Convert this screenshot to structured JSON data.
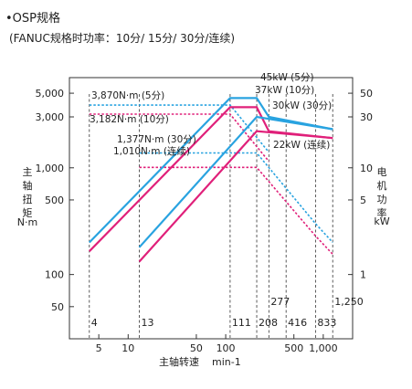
{
  "title": "•OSP规格",
  "subtitle": "(FANUC规格时功率：10分/ 15分/ 30分/连续)",
  "chart_data": {
    "type": "line",
    "xscale": "log",
    "yscale": "log",
    "xlim": [
      2.5,
      2000
    ],
    "ylim": [
      25,
      7000
    ],
    "xticks": [
      {
        "value": 5,
        "label": "5"
      },
      {
        "value": 10,
        "label": "10"
      },
      {
        "value": 50,
        "label": "50"
      },
      {
        "value": 100,
        "label": "100"
      },
      {
        "value": 500,
        "label": "500"
      },
      {
        "value": 1000,
        "label": "1,000"
      }
    ],
    "yticks_left": [
      {
        "value": 50,
        "label": "50"
      },
      {
        "value": 100,
        "label": "100"
      },
      {
        "value": 500,
        "label": "500"
      },
      {
        "value": 1000,
        "label": "1,000"
      },
      {
        "value": 3000,
        "label": "3,000"
      },
      {
        "value": 5000,
        "label": "5,000"
      }
    ],
    "yticks_right": [
      {
        "value": 100,
        "label": "1"
      },
      {
        "value": 500,
        "label": "5"
      },
      {
        "value": 1000,
        "label": "10"
      },
      {
        "value": 3000,
        "label": "30"
      },
      {
        "value": 5000,
        "label": "50"
      }
    ],
    "xlabel": "主轴转速",
    "xunit": "min-1",
    "ylabel_left": "主轴扭矩",
    "yunit_left": "N·m",
    "ylabel_right": "电机功率",
    "yunit_right": "kW",
    "vlines": [
      {
        "value": 4,
        "label": "4"
      },
      {
        "value": 13,
        "label": "13"
      },
      {
        "value": 111,
        "label": "111"
      },
      {
        "value": 208,
        "label": "208"
      },
      {
        "value": 277,
        "label": "277"
      },
      {
        "value": 416,
        "label": "416"
      },
      {
        "value": 833,
        "label": "833"
      },
      {
        "value": 1250,
        "label": "1,250"
      }
    ],
    "power_series": [
      {
        "name": "45kW (5分)",
        "color": "#29a3e0",
        "points": [
          [
            4,
            200
          ],
          [
            111,
            4500
          ],
          [
            208,
            4500
          ],
          [
            277,
            3000
          ],
          [
            1250,
            2300
          ]
        ]
      },
      {
        "name": "37kW (10分)",
        "color": "#e0207a",
        "points": [
          [
            4,
            165
          ],
          [
            111,
            3700
          ],
          [
            208,
            3700
          ],
          [
            277,
            2200
          ],
          [
            1250,
            1900
          ]
        ]
      },
      {
        "name": "30kW (30分)",
        "color": "#29a3e0",
        "points": [
          [
            13,
            180
          ],
          [
            208,
            3000
          ],
          [
            1250,
            2300
          ]
        ]
      },
      {
        "name": "22kW (连续)",
        "color": "#e0207a",
        "points": [
          [
            13,
            132
          ],
          [
            208,
            2200
          ],
          [
            1250,
            1900
          ]
        ]
      }
    ],
    "torque_series": [
      {
        "name": "3,870N·m (5分)",
        "color": "#29a3e0",
        "points": [
          [
            4,
            3870
          ],
          [
            111,
            3870
          ],
          [
            277,
            1400
          ]
        ]
      },
      {
        "name": "3,182N·m (10分)",
        "color": "#e0207a",
        "points": [
          [
            4,
            3182
          ],
          [
            111,
            3182
          ],
          [
            277,
            1150
          ]
        ]
      },
      {
        "name": "1,377N·m (30分)",
        "color": "#29a3e0",
        "points": [
          [
            13,
            1377
          ],
          [
            208,
            1377
          ],
          [
            833,
            300
          ],
          [
            1250,
            200
          ]
        ]
      },
      {
        "name": "1,010N·m (连续)",
        "color": "#e0207a",
        "points": [
          [
            13,
            1010
          ],
          [
            208,
            1010
          ],
          [
            833,
            230
          ],
          [
            1250,
            155
          ]
        ]
      }
    ]
  }
}
